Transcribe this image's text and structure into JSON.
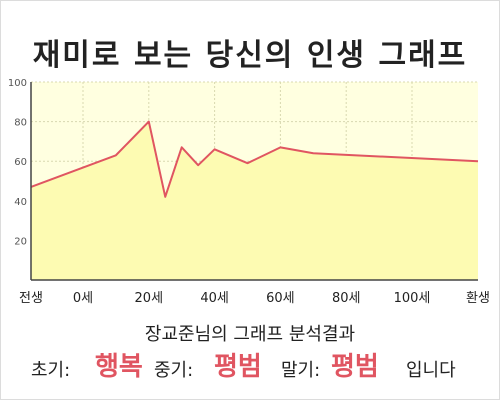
{
  "title": "재미로 보는 당신의 인생 그래프",
  "chart_data": {
    "type": "area",
    "x_labels": [
      "전생",
      "0세",
      "20세",
      "40세",
      "60세",
      "80세",
      "100세",
      "환생"
    ],
    "points": [
      {
        "x": "전생",
        "y": 47
      },
      {
        "x": "10세",
        "y": 63
      },
      {
        "x": "20세",
        "y": 80
      },
      {
        "x": "25세",
        "y": 42
      },
      {
        "x": "30세",
        "y": 67
      },
      {
        "x": "35세",
        "y": 58
      },
      {
        "x": "40세",
        "y": 66
      },
      {
        "x": "50세",
        "y": 59
      },
      {
        "x": "60세",
        "y": 67
      },
      {
        "x": "70세",
        "y": 64
      },
      {
        "x": "환생",
        "y": 60
      }
    ],
    "y_ticks": [
      20,
      40,
      60,
      80,
      100
    ],
    "ylim": [
      0,
      100
    ],
    "grid": true,
    "colors": {
      "plot_background": "#ffffe0",
      "area_fill": "#fdfbb2",
      "line": "#e05561",
      "axis": "#444444",
      "grid": "#d8d8b0"
    }
  },
  "result": {
    "heading": "장교준님의 그래프 분석결과",
    "early_label": "초기:",
    "early_value": "행복",
    "middle_label": "중기:",
    "middle_value": "평범",
    "late_label": "말기:",
    "late_value": "평범",
    "ending": "입니다"
  }
}
